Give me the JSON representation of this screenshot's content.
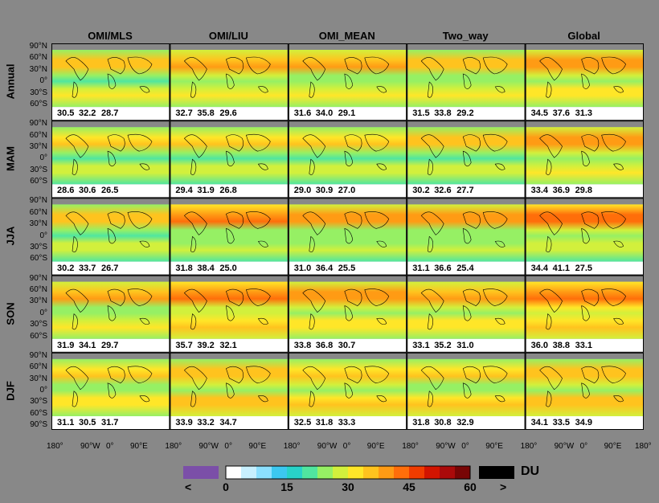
{
  "columns": [
    "OMI/MLS",
    "OMI/LIU",
    "OMI_MEAN",
    "Two_way",
    "Global"
  ],
  "rows": [
    "Annual",
    "MAM",
    "JJA",
    "SON",
    "DJF"
  ],
  "lat_labels": [
    "90°N",
    "60°N",
    "30°N",
    "0°",
    "30°S",
    "60°S",
    "90°"
  ],
  "lat_labels_last": [
    "90°N",
    "60°N",
    "30°N",
    "0°",
    "30°S",
    "60°S",
    "90°S"
  ],
  "lon_labels": [
    "180°",
    "90°W",
    "0°",
    "90°E"
  ],
  "lon_label_end": "180°",
  "chart_data": {
    "type": "heatmap",
    "title": "",
    "units": "DU",
    "colorbar": {
      "ticks": [
        "0",
        "15",
        "30",
        "45",
        "60"
      ],
      "under_label": "<",
      "over_label": ">",
      "under_color": "#7b4fa8",
      "over_color": "#000000",
      "colors": [
        "#ffffff",
        "#c8f0ff",
        "#8ce0ff",
        "#3cc8f0",
        "#28d2c8",
        "#50e6a0",
        "#96f064",
        "#d2f03c",
        "#ffe628",
        "#ffc31e",
        "#ff9b14",
        "#ff6e0a",
        "#f03c00",
        "#d21400",
        "#aa0a0a",
        "#780505"
      ]
    },
    "panels": [
      [
        [
          "30.5",
          "32.2",
          "28.7"
        ],
        [
          "32.7",
          "35.8",
          "29.6"
        ],
        [
          "31.6",
          "34.0",
          "29.1"
        ],
        [
          "31.5",
          "33.8",
          "29.2"
        ],
        [
          "34.5",
          "37.6",
          "31.3"
        ]
      ],
      [
        [
          "28.6",
          "30.6",
          "26.5"
        ],
        [
          "29.4",
          "31.9",
          "26.8"
        ],
        [
          "29.0",
          "30.9",
          "27.0"
        ],
        [
          "30.2",
          "32.6",
          "27.7"
        ],
        [
          "33.4",
          "36.9",
          "29.8"
        ]
      ],
      [
        [
          "30.2",
          "33.7",
          "26.7"
        ],
        [
          "31.8",
          "38.4",
          "25.0"
        ],
        [
          "31.0",
          "36.4",
          "25.5"
        ],
        [
          "31.1",
          "36.6",
          "25.4"
        ],
        [
          "34.4",
          "41.1",
          "27.5"
        ]
      ],
      [
        [
          "31.9",
          "34.1",
          "29.7"
        ],
        [
          "35.7",
          "39.2",
          "32.1"
        ],
        [
          "33.8",
          "36.8",
          "30.7"
        ],
        [
          "33.1",
          "35.2",
          "31.0"
        ],
        [
          "36.0",
          "38.8",
          "33.1"
        ]
      ],
      [
        [
          "31.1",
          "30.5",
          "31.7"
        ],
        [
          "33.9",
          "33.2",
          "34.7"
        ],
        [
          "32.5",
          "31.8",
          "33.3"
        ],
        [
          "31.8",
          "30.8",
          "32.9"
        ],
        [
          "34.1",
          "33.5",
          "34.9"
        ]
      ]
    ]
  }
}
